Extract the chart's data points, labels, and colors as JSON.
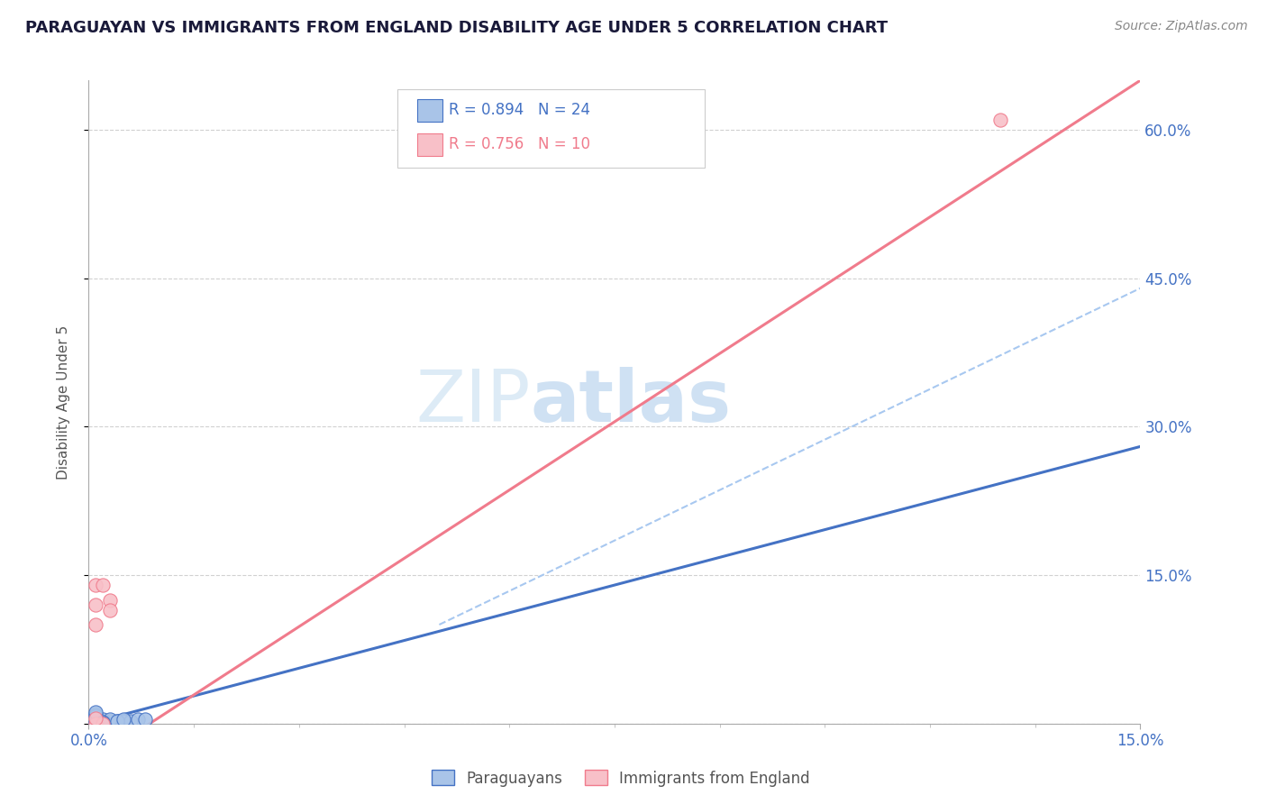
{
  "title": "PARAGUAYAN VS IMMIGRANTS FROM ENGLAND DISABILITY AGE UNDER 5 CORRELATION CHART",
  "source": "Source: ZipAtlas.com",
  "ylabel": "Disability Age Under 5",
  "xlim": [
    0,
    0.15
  ],
  "ylim": [
    0,
    0.65
  ],
  "ytick_vals": [
    0.0,
    0.15,
    0.3,
    0.45,
    0.6
  ],
  "xtick_vals": [
    0.0,
    0.15
  ],
  "xtick_labels": [
    "0.0%",
    "15.0%"
  ],
  "ytick_labels_right": [
    "",
    "15.0%",
    "30.0%",
    "45.0%",
    "60.0%"
  ],
  "legend_r_n": [
    {
      "label_r": "R = 0.894",
      "label_n": "N = 24",
      "color": "#5b9bd5"
    },
    {
      "label_r": "R = 0.756",
      "label_n": "N = 10",
      "color": "#f07b8c"
    }
  ],
  "legend_bottom": [
    "Paraguayans",
    "Immigrants from England"
  ],
  "para_x": [
    0.001,
    0.001,
    0.002,
    0.002,
    0.003,
    0.003,
    0.003,
    0.004,
    0.004,
    0.005,
    0.005,
    0.006,
    0.007,
    0.008,
    0.001,
    0.002,
    0.002,
    0.003,
    0.004,
    0.005,
    0.001,
    0.001,
    0.002,
    0.002
  ],
  "para_y": [
    0.001,
    0.002,
    0.001,
    0.002,
    0.001,
    0.002,
    0.003,
    0.002,
    0.003,
    0.002,
    0.003,
    0.003,
    0.004,
    0.004,
    0.01,
    0.003,
    0.004,
    0.004,
    0.003,
    0.004,
    0.008,
    0.012,
    0.002,
    0.001
  ],
  "eng_x": [
    0.001,
    0.001,
    0.002,
    0.003,
    0.003,
    0.001,
    0.002,
    0.13,
    0.001,
    0.001
  ],
  "eng_y": [
    0.12,
    0.14,
    0.14,
    0.125,
    0.115,
    0.0,
    0.0,
    0.61,
    0.1,
    0.005
  ],
  "blue_line": [
    [
      0.0,
      0.0
    ],
    [
      0.15,
      0.28
    ]
  ],
  "pink_line": [
    [
      0.0,
      -0.04
    ],
    [
      0.15,
      0.65
    ]
  ],
  "dashed_line": [
    [
      0.05,
      0.1
    ],
    [
      0.15,
      0.44
    ]
  ],
  "blue_color": "#4472c4",
  "pink_color": "#f07b8c",
  "scatter_blue_fill": "#a9c4e8",
  "scatter_blue_edge": "#4472c4",
  "scatter_pink_fill": "#f8c0c8",
  "scatter_pink_edge": "#f07b8c",
  "dashed_color": "#a8c8f0",
  "watermark_zip_color": "#d8e8f5",
  "watermark_atlas_color": "#c0d8f0",
  "bg_color": "#ffffff",
  "grid_color": "#cccccc",
  "tick_label_color": "#4472c4",
  "ylabel_color": "#555555",
  "title_color": "#1a1a3a",
  "source_color": "#888888"
}
